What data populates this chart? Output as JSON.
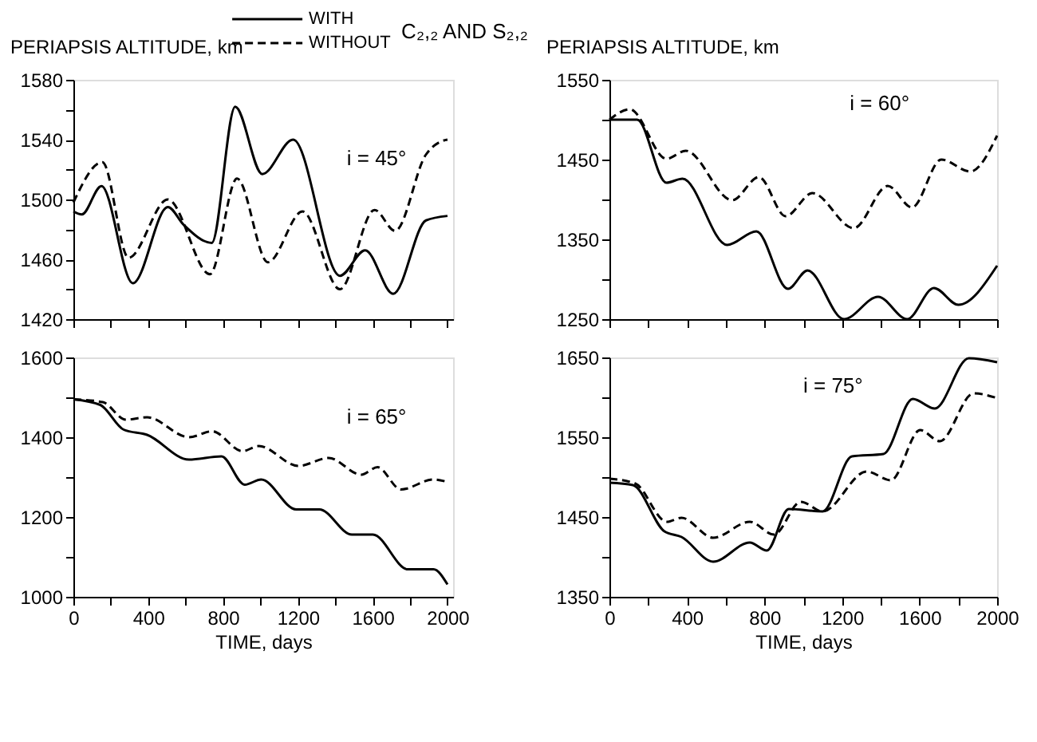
{
  "chart_data": [
    {
      "type": "line",
      "ylabel": "PERIAPSIS ALTITUDE, km",
      "annotations": [
        "i = 45°",
        "C₂,₂ AND S₂,₂"
      ],
      "legend": "top",
      "grid": false,
      "tick_labels": "y",
      "xlim": [
        0,
        2030
      ],
      "xticks": [
        {
          "value": 0,
          "label": null
        },
        {
          "value": 200,
          "label": null
        },
        {
          "value": 400,
          "label": null
        },
        {
          "value": 600,
          "label": null
        },
        {
          "value": 800,
          "label": null
        },
        {
          "value": 1000,
          "label": null
        },
        {
          "value": 1200,
          "label": null
        },
        {
          "value": 1400,
          "label": null
        },
        {
          "value": 1600,
          "label": null
        },
        {
          "value": 1800,
          "label": null
        },
        {
          "value": 2000,
          "label": null
        }
      ],
      "ylim": [
        1420,
        1580
      ],
      "yticks": [
        1420,
        {
          "value": 1440,
          "label": null
        },
        1460,
        {
          "value": 1480,
          "label": null
        },
        1500,
        {
          "value": 1520,
          "label": null
        },
        1540,
        {
          "value": 1560,
          "label": null
        },
        1580
      ],
      "series": [
        {
          "name": "WITH",
          "color": "#000000",
          "line_style": "solid",
          "x": [
            0,
            45,
            150,
            318,
            505,
            590,
            740,
            865,
            1010,
            1175,
            1425,
            1560,
            1710,
            1885,
            2000
          ],
          "values": [
            1492,
            1490,
            1509,
            1444,
            1495,
            1483,
            1471,
            1562,
            1517,
            1540,
            1449,
            1466,
            1437,
            1486,
            1489
          ]
        },
        {
          "name": "WITHOUT",
          "color": "#000000",
          "line_style": "dashed",
          "x": [
            0,
            155,
            295,
            505,
            730,
            875,
            1040,
            1225,
            1425,
            1610,
            1720,
            1885,
            1970,
            2000
          ],
          "values": [
            1498,
            1525,
            1461,
            1500,
            1450,
            1514,
            1458,
            1492,
            1440,
            1493,
            1479,
            1530,
            1539,
            1540
          ]
        }
      ]
    },
    {
      "type": "line",
      "ylabel": "PERIAPSIS ALTITUDE, km",
      "annotations": [
        "i = 60°"
      ],
      "grid": false,
      "tick_labels": "y",
      "xlim": [
        0,
        2000
      ],
      "xticks": [
        {
          "value": 0,
          "label": null
        },
        {
          "value": 200,
          "label": null
        },
        {
          "value": 400,
          "label": null
        },
        {
          "value": 600,
          "label": null
        },
        {
          "value": 800,
          "label": null
        },
        {
          "value": 1000,
          "label": null
        },
        {
          "value": 1200,
          "label": null
        },
        {
          "value": 1400,
          "label": null
        },
        {
          "value": 1600,
          "label": null
        },
        {
          "value": 1800,
          "label": null
        },
        {
          "value": 2000,
          "label": null
        }
      ],
      "ylim": [
        1250,
        1550
      ],
      "yticks": [
        1250,
        {
          "value": 1300,
          "label": null
        },
        1350,
        {
          "value": 1400,
          "label": null
        },
        1450,
        {
          "value": 1500,
          "label": null
        },
        1550
      ],
      "series": [
        {
          "color": "#000000",
          "line_style": "solid",
          "x": [
            0,
            143,
            294,
            377,
            607,
            758,
            921,
            1022,
            1210,
            1386,
            1536,
            1674,
            1800,
            2000
          ],
          "values": [
            1500,
            1500,
            1421,
            1426,
            1343,
            1360,
            1288,
            1311,
            1250,
            1278,
            1250,
            1289,
            1268,
            1317
          ]
        },
        {
          "color": "#000000",
          "line_style": "dashed",
          "x": [
            0,
            105,
            294,
            394,
            633,
            771,
            909,
            1047,
            1260,
            1436,
            1561,
            1712,
            1862,
            2000
          ],
          "values": [
            1500,
            1513,
            1451,
            1461,
            1399,
            1428,
            1379,
            1408,
            1364,
            1417,
            1390,
            1450,
            1435,
            1480
          ]
        }
      ]
    },
    {
      "type": "line",
      "xlabel": "TIME, days",
      "annotations": [
        "i = 65°"
      ],
      "grid": false,
      "xlim": [
        0,
        2030
      ],
      "xticks": [
        0,
        {
          "value": 200,
          "label": null
        },
        400,
        {
          "value": 600,
          "label": null
        },
        800,
        {
          "value": 1000,
          "label": null
        },
        1200,
        {
          "value": 1400,
          "label": null
        },
        1600,
        {
          "value": 1800,
          "label": null
        },
        2000
      ],
      "ylim": [
        1000,
        1600
      ],
      "yticks": [
        1000,
        {
          "value": 1100,
          "label": null
        },
        1200,
        {
          "value": 1300,
          "label": null
        },
        1400,
        {
          "value": 1500,
          "label": null
        },
        1600
      ],
      "series": [
        {
          "color": "#000000",
          "line_style": "solid",
          "x": [
            0,
            144,
            269,
            394,
            618,
            792,
            916,
            1004,
            1191,
            1315,
            1489,
            1601,
            1788,
            1925,
            2000
          ],
          "values": [
            1495,
            1481,
            1419,
            1406,
            1344,
            1352,
            1281,
            1294,
            1219,
            1219,
            1156,
            1156,
            1069,
            1069,
            1031
          ]
        },
        {
          "color": "#000000",
          "line_style": "dashed",
          "x": [
            0,
            157,
            281,
            394,
            618,
            742,
            904,
            991,
            1203,
            1365,
            1539,
            1626,
            1751,
            1925,
            2000
          ],
          "values": [
            1495,
            1488,
            1444,
            1450,
            1400,
            1415,
            1365,
            1378,
            1328,
            1348,
            1306,
            1325,
            1269,
            1294,
            1288
          ]
        }
      ]
    },
    {
      "type": "line",
      "xlabel": "TIME, days",
      "annotations": [
        "i = 75°"
      ],
      "grid": false,
      "xlim": [
        0,
        2000
      ],
      "xticks": [
        0,
        {
          "value": 200,
          "label": null
        },
        400,
        {
          "value": 600,
          "label": null
        },
        800,
        {
          "value": 1000,
          "label": null
        },
        1200,
        {
          "value": 1400,
          "label": null
        },
        1600,
        {
          "value": 1800,
          "label": null
        },
        2000
      ],
      "ylim": [
        1350,
        1650
      ],
      "yticks": [
        1350,
        {
          "value": 1400,
          "label": null
        },
        1450,
        {
          "value": 1500,
          "label": null
        },
        1550,
        {
          "value": 1600,
          "label": null
        },
        1650
      ],
      "series": [
        {
          "color": "#000000",
          "line_style": "solid",
          "x": [
            0,
            121,
            284,
            372,
            535,
            724,
            812,
            925,
            1100,
            1251,
            1414,
            1565,
            1678,
            1854,
            2000
          ],
          "values": [
            1493,
            1490,
            1432,
            1425,
            1394,
            1418,
            1408,
            1460,
            1457,
            1526,
            1529,
            1598,
            1586,
            1649,
            1644
          ]
        },
        {
          "color": "#000000",
          "line_style": "dashed",
          "x": [
            0,
            133,
            296,
            372,
            535,
            724,
            849,
            987,
            1100,
            1327,
            1452,
            1603,
            1704,
            1879,
            2000
          ],
          "values": [
            1498,
            1492,
            1444,
            1449,
            1424,
            1444,
            1428,
            1469,
            1457,
            1507,
            1496,
            1559,
            1545,
            1605,
            1599
          ]
        }
      ]
    }
  ]
}
